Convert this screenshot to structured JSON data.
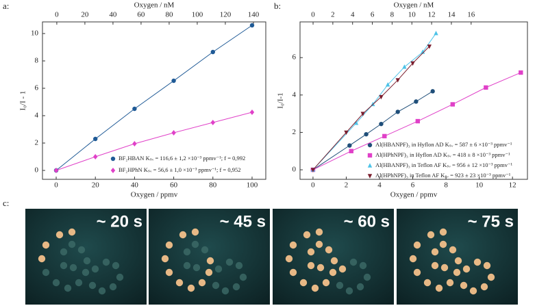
{
  "panel_labels": [
    "a:",
    "b:",
    "c:"
  ],
  "photos": [
    {
      "label": "~ 20 s"
    },
    {
      "label": "~ 45 s"
    },
    {
      "label": "~ 60 s"
    },
    {
      "label": "~ 75 s"
    }
  ],
  "chart_data": [
    {
      "type": "scatter-line",
      "x_label": "Oxygen / ppmv",
      "x2_label": "Oxygen / nM",
      "y_label": "I₀/I - 1",
      "xlim": [
        -7,
        107
      ],
      "xticks": [
        0,
        20,
        40,
        60,
        80,
        100
      ],
      "x2lim": [
        -10.2,
        148.8
      ],
      "x2ticks": [
        0,
        20,
        40,
        60,
        80,
        100,
        120,
        140
      ],
      "ylim": [
        -0.65,
        10.85
      ],
      "yticks": [
        0,
        2,
        4,
        6,
        8,
        10
      ],
      "series": [
        {
          "name": "BF₂HBAN  Kₛᵥ = 116,6 ± 1,2 ×10⁻³ ppmv⁻¹; f = 0,992",
          "color": "#1f5a96",
          "marker": "circle",
          "x": [
            0,
            20,
            40,
            60,
            80,
            100
          ],
          "values": [
            0,
            2.3,
            4.5,
            6.55,
            8.65,
            10.6
          ]
        },
        {
          "name": "BF₂HPhN  Kₛᵥ = 56,6 ± 1,0 ×10⁻³ ppmv⁻¹; f = 0,952",
          "color": "#e040c8",
          "marker": "diamond",
          "x": [
            0,
            20,
            40,
            60,
            80,
            100
          ],
          "values": [
            0,
            1.0,
            1.95,
            2.75,
            3.5,
            4.25
          ]
        }
      ]
    },
    {
      "type": "scatter-line",
      "x_label": "Oxygen / ppmv",
      "x2_label": "Oxygen / nM",
      "y_label": "I₀/I-1",
      "xlim": [
        -0.78,
        12.9
      ],
      "xticks": [
        0,
        2,
        4,
        6,
        8,
        10,
        12
      ],
      "x2lim": [
        -1.32,
        21.7
      ],
      "x2ticks": [
        0,
        2,
        4,
        6,
        8,
        10,
        12,
        14,
        16
      ],
      "ylim": [
        -0.51,
        7.91
      ],
      "yticks": [
        0,
        2,
        4,
        6
      ],
      "series": [
        {
          "name": "Al(HBANPF)₃ in Hyflon AD  Kₛᵥ = 587 ± 6 ×10⁻³ ppmv⁻¹",
          "color": "#1f4e79",
          "marker": "circle",
          "x": [
            0,
            2.2,
            3.2,
            4.1,
            5.1,
            6.2,
            7.2
          ],
          "values": [
            0,
            1.3,
            1.9,
            2.45,
            3.1,
            3.65,
            4.2
          ]
        },
        {
          "name": "Al(HPhNPF)₃ in Hyflon AD  Kₛᵥ = 418 ± 8 ×10⁻³ ppmv⁻¹",
          "color": "#e040c8",
          "marker": "square",
          "x": [
            0,
            2.3,
            4.3,
            6.3,
            8.4,
            10.4,
            12.5
          ],
          "values": [
            0,
            1.0,
            1.8,
            2.6,
            3.5,
            4.4,
            5.2
          ]
        },
        {
          "name": "Al(HBANPF)₃ in Teflon AF  Kₛᵥ = 956 ± 12 ×10⁻³ ppmv⁻¹",
          "color": "#4dc3e8",
          "marker": "triangle",
          "x": [
            0,
            2.6,
            3.6,
            4.5,
            5.5,
            6.6,
            7.4
          ],
          "values": [
            0,
            2.5,
            3.5,
            4.55,
            5.5,
            6.3,
            7.3
          ]
        },
        {
          "name": "Al(HPhNPF)₃ in Teflon AF  Kₛᵥ = 923 ± 23 ×10⁻³ ppmv⁻¹",
          "color": "#7b1e2e",
          "marker": "down-triangle",
          "x": [
            0,
            2.0,
            3.0,
            4.1,
            5.1,
            6.0,
            7.0
          ],
          "values": [
            0,
            2.0,
            3.0,
            3.9,
            4.8,
            5.7,
            6.6
          ]
        }
      ]
    }
  ]
}
